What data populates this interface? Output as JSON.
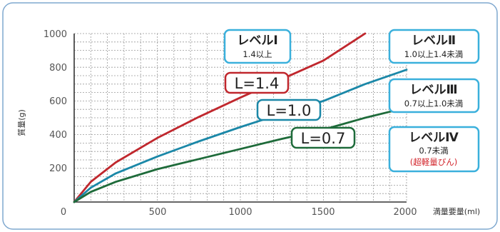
{
  "chart_data": {
    "type": "line",
    "ylabel": "質量(g)",
    "xlabel": "満量要量(ml)",
    "xlim": [
      0,
      2000
    ],
    "ylim": [
      0,
      1000
    ],
    "grid": true,
    "x_ticks": [
      "0",
      "500",
      "1000",
      "1500",
      "2000"
    ],
    "y_ticks": [
      "200",
      "400",
      "600",
      "800",
      "1000"
    ],
    "series": [
      {
        "name": "L=1.4",
        "color": "#c0272d",
        "x": [
          0,
          100,
          250,
          500,
          750,
          1000,
          1250,
          1500,
          1750
        ],
        "y": [
          0,
          120,
          235,
          380,
          505,
          620,
          730,
          840,
          1000
        ]
      },
      {
        "name": "L=1.0",
        "color": "#1b88a8",
        "x": [
          0,
          100,
          250,
          500,
          750,
          1000,
          1250,
          1500,
          1750,
          2000
        ],
        "y": [
          0,
          85,
          170,
          270,
          360,
          445,
          525,
          600,
          700,
          785
        ]
      },
      {
        "name": "L=0.7",
        "color": "#1e6b3a",
        "x": [
          0,
          100,
          250,
          500,
          750,
          1000,
          1250,
          1500,
          1750,
          2000
        ],
        "y": [
          0,
          60,
          120,
          195,
          255,
          315,
          375,
          430,
          500,
          560
        ]
      }
    ],
    "levels": [
      {
        "title": "レベルⅠ",
        "sub": "1.4以上",
        "note": ""
      },
      {
        "title": "レベルⅡ",
        "sub": "1.0以上1.4未満",
        "note": ""
      },
      {
        "title": "レベルⅢ",
        "sub": "0.7以上1.0未満",
        "note": ""
      },
      {
        "title": "レベルⅣ",
        "sub": "0.7未満",
        "note": "(超軽量びん)"
      }
    ],
    "colors": {
      "frame": "#7fa8cf",
      "level_box_border": "#3ab0dc",
      "axis": "#333333",
      "grid": "#999999"
    }
  }
}
